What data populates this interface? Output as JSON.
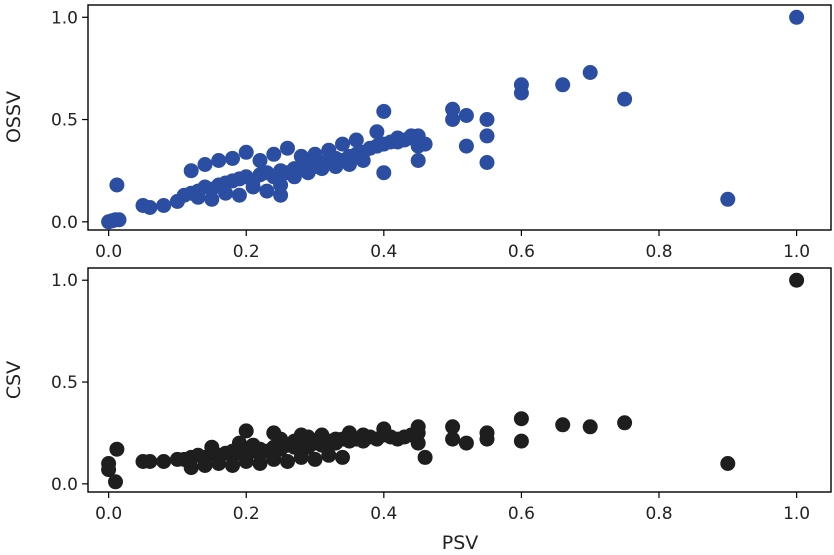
{
  "chart_data": [
    {
      "type": "scatter",
      "xlabel": "",
      "ylabel": "OSSV",
      "xlim": [
        -0.03,
        1.05
      ],
      "ylim": [
        -0.04,
        1.06
      ],
      "xticks": [
        "0.0",
        "0.2",
        "0.4",
        "0.6",
        "0.8",
        "1.0"
      ],
      "yticks": [
        "0.0",
        "0.5",
        "1.0"
      ],
      "grid": false,
      "color": "#2b4ea2",
      "x": [
        0.0,
        0.005,
        0.01,
        0.012,
        0.015,
        0.05,
        0.06,
        0.08,
        0.1,
        0.11,
        0.12,
        0.13,
        0.14,
        0.15,
        0.16,
        0.17,
        0.18,
        0.19,
        0.2,
        0.21,
        0.22,
        0.23,
        0.24,
        0.25,
        0.26,
        0.27,
        0.28,
        0.29,
        0.3,
        0.31,
        0.32,
        0.33,
        0.34,
        0.35,
        0.36,
        0.37,
        0.38,
        0.39,
        0.4,
        0.41,
        0.42,
        0.43,
        0.44,
        0.45,
        0.12,
        0.14,
        0.16,
        0.18,
        0.2,
        0.22,
        0.24,
        0.26,
        0.28,
        0.3,
        0.32,
        0.34,
        0.15,
        0.19,
        0.21,
        0.25,
        0.27,
        0.29,
        0.31,
        0.33,
        0.35,
        0.37,
        0.13,
        0.17,
        0.23,
        0.25,
        0.36,
        0.39,
        0.4,
        0.4,
        0.42,
        0.44,
        0.45,
        0.45,
        0.46,
        0.5,
        0.5,
        0.52,
        0.52,
        0.55,
        0.55,
        0.55,
        0.6,
        0.6,
        0.66,
        0.7,
        0.75,
        0.9,
        1.0
      ],
      "y": [
        0.0,
        0.005,
        0.01,
        0.18,
        0.01,
        0.08,
        0.07,
        0.08,
        0.1,
        0.13,
        0.14,
        0.15,
        0.17,
        0.16,
        0.18,
        0.19,
        0.2,
        0.21,
        0.22,
        0.2,
        0.23,
        0.24,
        0.22,
        0.25,
        0.24,
        0.26,
        0.27,
        0.28,
        0.27,
        0.29,
        0.3,
        0.31,
        0.3,
        0.32,
        0.33,
        0.34,
        0.36,
        0.37,
        0.38,
        0.39,
        0.41,
        0.4,
        0.41,
        0.42,
        0.25,
        0.28,
        0.3,
        0.31,
        0.34,
        0.3,
        0.33,
        0.36,
        0.32,
        0.33,
        0.35,
        0.38,
        0.11,
        0.13,
        0.17,
        0.18,
        0.22,
        0.24,
        0.26,
        0.27,
        0.28,
        0.3,
        0.12,
        0.14,
        0.15,
        0.13,
        0.4,
        0.44,
        0.54,
        0.24,
        0.39,
        0.42,
        0.37,
        0.3,
        0.38,
        0.55,
        0.5,
        0.52,
        0.37,
        0.5,
        0.42,
        0.29,
        0.67,
        0.63,
        0.67,
        0.73,
        0.6,
        0.11,
        1.0
      ]
    },
    {
      "type": "scatter",
      "xlabel": "PSV",
      "ylabel": "CSV",
      "xlim": [
        -0.03,
        1.05
      ],
      "ylim": [
        -0.04,
        1.06
      ],
      "xticks": [
        "0.0",
        "0.2",
        "0.4",
        "0.6",
        "0.8",
        "1.0"
      ],
      "yticks": [
        "0.0",
        "0.5",
        "1.0"
      ],
      "grid": false,
      "color": "#1e1e1e",
      "x": [
        0.0,
        0.0,
        0.01,
        0.012,
        0.05,
        0.06,
        0.08,
        0.1,
        0.11,
        0.12,
        0.13,
        0.14,
        0.15,
        0.16,
        0.17,
        0.18,
        0.19,
        0.2,
        0.21,
        0.22,
        0.23,
        0.24,
        0.25,
        0.26,
        0.27,
        0.28,
        0.29,
        0.3,
        0.31,
        0.32,
        0.33,
        0.34,
        0.35,
        0.36,
        0.37,
        0.38,
        0.39,
        0.4,
        0.41,
        0.42,
        0.43,
        0.44,
        0.45,
        0.12,
        0.14,
        0.16,
        0.18,
        0.2,
        0.22,
        0.24,
        0.26,
        0.28,
        0.3,
        0.32,
        0.34,
        0.15,
        0.19,
        0.21,
        0.25,
        0.27,
        0.29,
        0.31,
        0.33,
        0.35,
        0.37,
        0.2,
        0.24,
        0.28,
        0.4,
        0.45,
        0.45,
        0.46,
        0.5,
        0.5,
        0.52,
        0.55,
        0.55,
        0.6,
        0.6,
        0.66,
        0.7,
        0.75,
        0.9,
        1.0
      ],
      "y": [
        0.1,
        0.07,
        0.01,
        0.17,
        0.11,
        0.11,
        0.11,
        0.12,
        0.12,
        0.13,
        0.14,
        0.13,
        0.15,
        0.14,
        0.15,
        0.16,
        0.15,
        0.17,
        0.16,
        0.17,
        0.16,
        0.18,
        0.17,
        0.19,
        0.18,
        0.19,
        0.18,
        0.2,
        0.19,
        0.21,
        0.2,
        0.22,
        0.21,
        0.22,
        0.21,
        0.23,
        0.22,
        0.24,
        0.23,
        0.22,
        0.23,
        0.24,
        0.25,
        0.08,
        0.09,
        0.1,
        0.09,
        0.11,
        0.1,
        0.12,
        0.11,
        0.13,
        0.12,
        0.14,
        0.13,
        0.18,
        0.2,
        0.19,
        0.22,
        0.21,
        0.23,
        0.24,
        0.22,
        0.25,
        0.24,
        0.26,
        0.25,
        0.24,
        0.27,
        0.2,
        0.28,
        0.13,
        0.28,
        0.22,
        0.2,
        0.25,
        0.22,
        0.32,
        0.21,
        0.29,
        0.28,
        0.3,
        0.1,
        1.0
      ]
    }
  ]
}
